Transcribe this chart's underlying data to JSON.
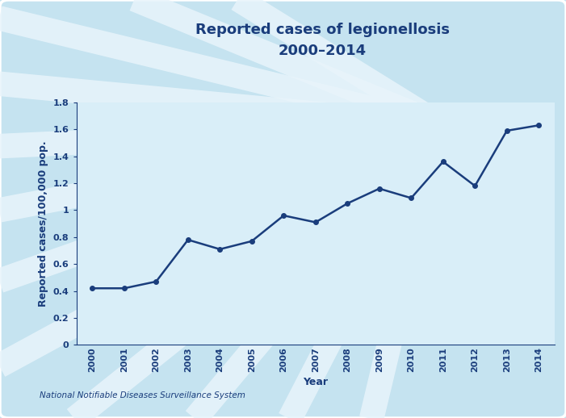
{
  "years": [
    2000,
    2001,
    2002,
    2003,
    2004,
    2005,
    2006,
    2007,
    2008,
    2009,
    2010,
    2011,
    2012,
    2013,
    2014
  ],
  "values": [
    0.42,
    0.42,
    0.47,
    0.78,
    0.71,
    0.77,
    0.96,
    0.91,
    1.05,
    1.16,
    1.09,
    1.36,
    1.18,
    1.59,
    1.63
  ],
  "title_line1": "Reported cases of legionellosis",
  "title_line2": "2000–2014",
  "xlabel": "Year",
  "ylabel": "Reported cases/100,000 pop.",
  "ylim": [
    0,
    1.8
  ],
  "yticks": [
    0,
    0.2,
    0.4,
    0.6,
    0.8,
    1.0,
    1.2,
    1.4,
    1.6,
    1.8
  ],
  "line_color": "#1a3d7c",
  "marker_color": "#1a3d7c",
  "background_outer": "#c5e3f0",
  "background_inner": "#d9eef8",
  "plot_bg": "#d9eef8",
  "title_color": "#1a3d7c",
  "axis_color": "#1a3d7c",
  "tick_color": "#1a3d7c",
  "label_color": "#1a3d7c",
  "footnote": "National Notifiable Diseases Surveillance System",
  "footnote_color": "#1a3d7c",
  "title_fontsize": 13,
  "axis_label_fontsize": 9,
  "tick_fontsize": 8,
  "footnote_fontsize": 7.5,
  "ray_color": "#e8f4fb",
  "ray_alpha": 0.85,
  "ray_linewidth": 22
}
